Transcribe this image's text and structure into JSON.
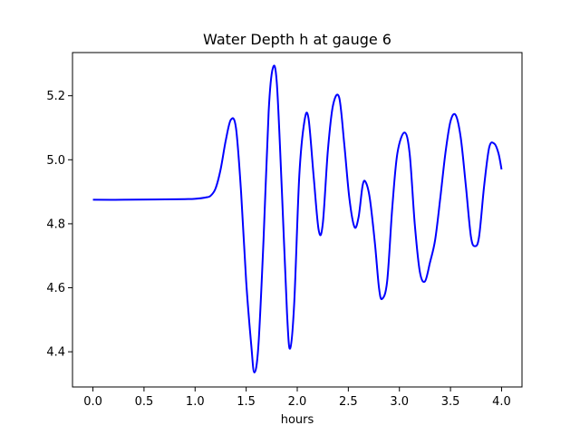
{
  "chart_data": {
    "type": "line",
    "title": "Water Depth h at gauge 6",
    "xlabel": "hours",
    "ylabel": "",
    "xlim": [
      -0.2,
      4.2
    ],
    "ylim": [
      4.29,
      5.335
    ],
    "grid": false,
    "x_ticks": [
      0.0,
      0.5,
      1.0,
      1.5,
      2.0,
      2.5,
      3.0,
      3.5,
      4.0
    ],
    "x_tick_labels": [
      "0.0",
      "0.5",
      "1.0",
      "1.5",
      "2.0",
      "2.5",
      "3.0",
      "3.5",
      "4.0"
    ],
    "y_ticks": [
      4.4,
      4.6,
      4.8,
      5.0,
      5.2
    ],
    "y_tick_labels": [
      "4.4",
      "4.6",
      "4.8",
      "5.0",
      "5.2"
    ],
    "series": [
      {
        "color": "#0000ff",
        "x": [
          0.0,
          0.3,
          0.6,
          0.9,
          1.0,
          1.1,
          1.15,
          1.2,
          1.25,
          1.3,
          1.35,
          1.4,
          1.45,
          1.5,
          1.55,
          1.58,
          1.62,
          1.67,
          1.72,
          1.76,
          1.8,
          1.85,
          1.9,
          1.93,
          1.97,
          2.02,
          2.07,
          2.11,
          2.16,
          2.21,
          2.25,
          2.3,
          2.35,
          2.41,
          2.46,
          2.51,
          2.56,
          2.6,
          2.64,
          2.67,
          2.71,
          2.76,
          2.8,
          2.83,
          2.88,
          2.93,
          2.98,
          3.05,
          3.1,
          3.15,
          3.2,
          3.25,
          3.3,
          3.35,
          3.4,
          3.45,
          3.5,
          3.55,
          3.6,
          3.65,
          3.7,
          3.74,
          3.78,
          3.83,
          3.88,
          3.93,
          3.97,
          4.0
        ],
        "y": [
          4.875,
          4.875,
          4.876,
          4.877,
          4.878,
          4.882,
          4.887,
          4.91,
          4.97,
          5.06,
          5.125,
          5.1,
          4.9,
          4.62,
          4.42,
          4.335,
          4.42,
          4.75,
          5.15,
          5.285,
          5.24,
          4.9,
          4.52,
          4.41,
          4.55,
          4.95,
          5.12,
          5.13,
          4.95,
          4.78,
          4.8,
          5.03,
          5.17,
          5.195,
          5.05,
          4.88,
          4.79,
          4.82,
          4.92,
          4.93,
          4.88,
          4.74,
          4.6,
          4.565,
          4.62,
          4.85,
          5.02,
          5.085,
          5.02,
          4.8,
          4.65,
          4.62,
          4.68,
          4.75,
          4.88,
          5.02,
          5.12,
          5.14,
          5.07,
          4.92,
          4.76,
          4.73,
          4.76,
          4.92,
          5.04,
          5.05,
          5.02,
          4.97
        ]
      }
    ]
  }
}
